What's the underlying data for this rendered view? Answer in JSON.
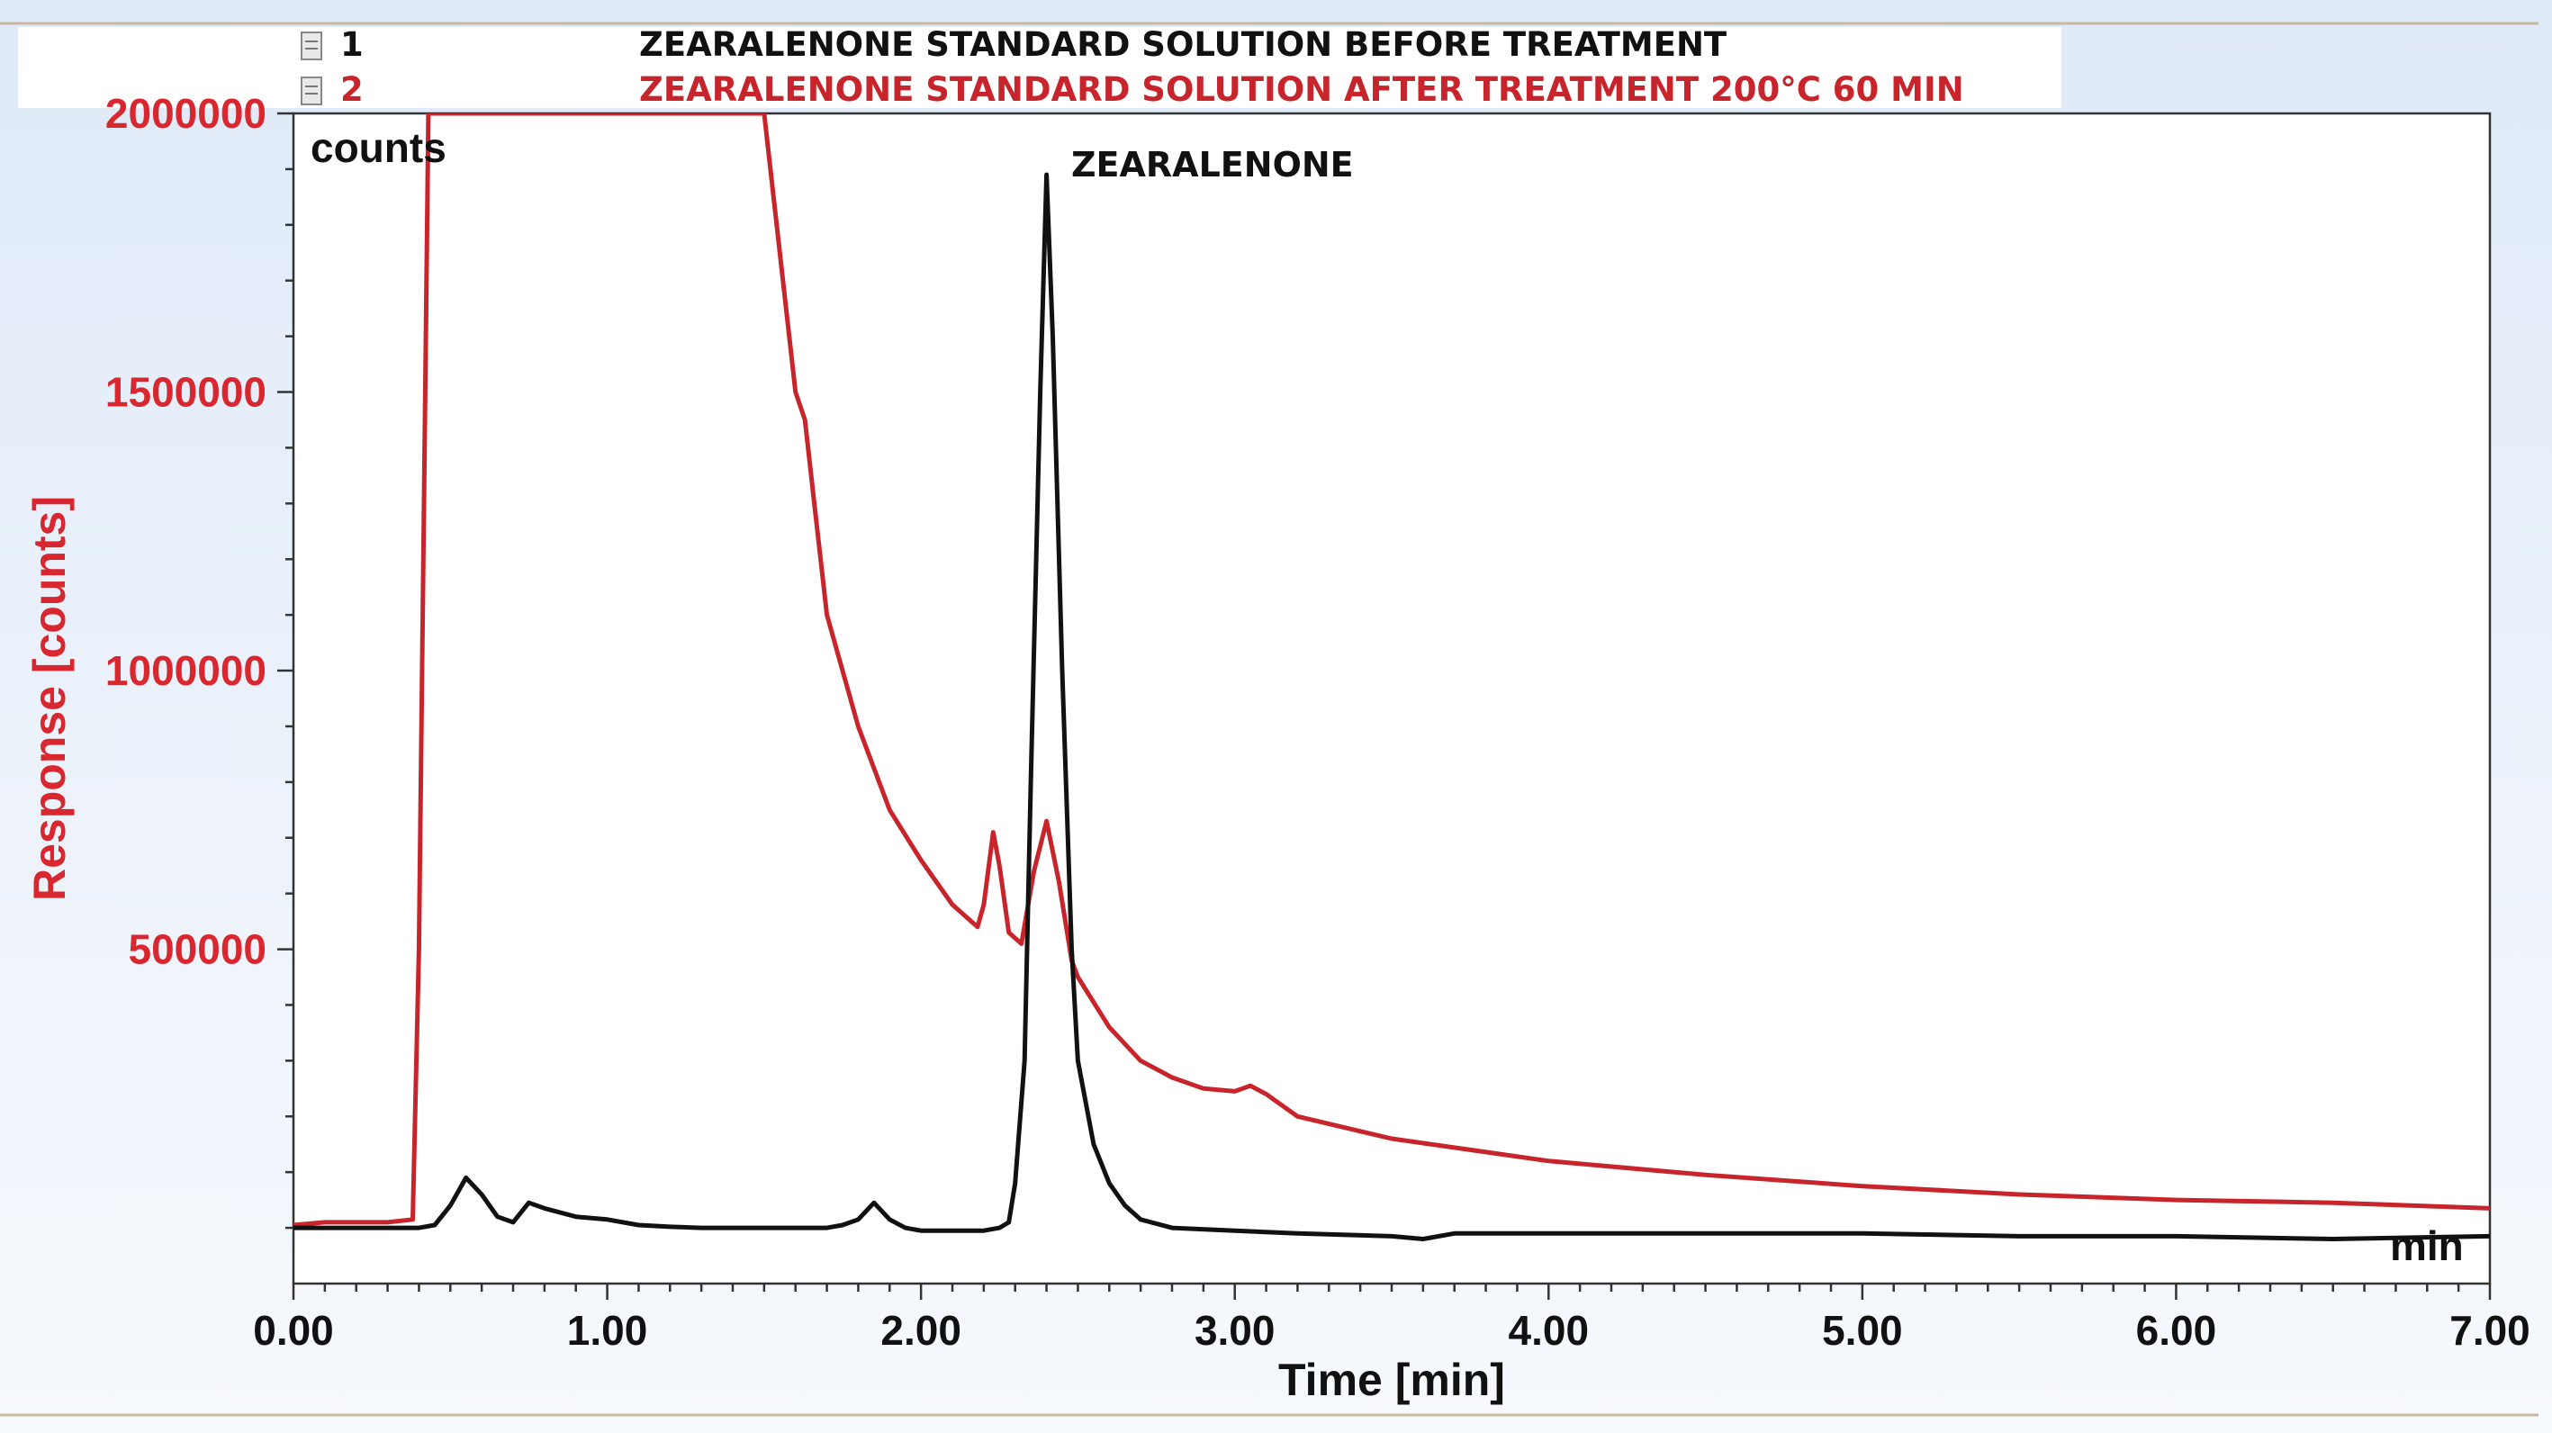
{
  "chart_data": {
    "type": "line",
    "title": "",
    "xlabel": "Time [min]",
    "ylabel": "Response [counts]",
    "y_unit_label": "counts",
    "x_unit_label": "min",
    "xlim": [
      0,
      7
    ],
    "ylim": [
      -100000,
      2000000
    ],
    "x_ticks": [
      0,
      1,
      2,
      3,
      4,
      5,
      6,
      7
    ],
    "x_tick_labels": [
      "0.00",
      "1.00",
      "2.00",
      "3.00",
      "4.00",
      "5.00",
      "6.00",
      "7.00"
    ],
    "y_ticks": [
      500000,
      1000000,
      1500000,
      2000000
    ],
    "y_tick_labels": [
      "500000",
      "1000000",
      "1500000",
      "2000000"
    ],
    "grid": false,
    "legend_position": "top",
    "annotations": [
      {
        "text": "ZEARALENONE",
        "x": 2.4,
        "y": 1900000
      }
    ],
    "series": [
      {
        "id": "1",
        "name": "ZEARALENONE STANDARD SOLUTION BEFORE TREATMENT",
        "color": "#111111",
        "x": [
          0.0,
          0.1,
          0.2,
          0.3,
          0.4,
          0.45,
          0.5,
          0.55,
          0.6,
          0.65,
          0.7,
          0.75,
          0.8,
          0.9,
          1.0,
          1.1,
          1.2,
          1.3,
          1.4,
          1.5,
          1.6,
          1.7,
          1.75,
          1.8,
          1.85,
          1.9,
          1.95,
          2.0,
          2.1,
          2.2,
          2.25,
          2.28,
          2.3,
          2.33,
          2.35,
          2.38,
          2.4,
          2.42,
          2.45,
          2.48,
          2.5,
          2.55,
          2.6,
          2.65,
          2.7,
          2.8,
          3.0,
          3.2,
          3.5,
          3.6,
          3.7,
          4.0,
          4.5,
          5.0,
          5.5,
          6.0,
          6.5,
          7.0
        ],
        "y": [
          0,
          0,
          0,
          0,
          0,
          5000,
          40000,
          90000,
          60000,
          20000,
          10000,
          45000,
          35000,
          20000,
          15000,
          5000,
          2000,
          0,
          0,
          0,
          0,
          0,
          5000,
          15000,
          45000,
          15000,
          0,
          -5000,
          -5000,
          -5000,
          0,
          10000,
          80000,
          300000,
          800000,
          1500000,
          1890000,
          1600000,
          1000000,
          500000,
          300000,
          150000,
          80000,
          40000,
          15000,
          0,
          -5000,
          -10000,
          -15000,
          -20000,
          -10000,
          -10000,
          -10000,
          -10000,
          -15000,
          -15000,
          -20000,
          -15000
        ]
      },
      {
        "id": "2",
        "name": "ZEARALENONE STANDARD SOLUTION AFTER TREATMENT 200°C 60 MIN",
        "color": "#c8242b",
        "x": [
          0.0,
          0.1,
          0.2,
          0.3,
          0.38,
          0.4,
          0.42,
          0.43,
          1.5,
          1.55,
          1.6,
          1.63,
          1.66,
          1.7,
          1.8,
          1.9,
          2.0,
          2.1,
          2.18,
          2.2,
          2.23,
          2.25,
          2.28,
          2.32,
          2.36,
          2.4,
          2.44,
          2.48,
          2.5,
          2.6,
          2.7,
          2.8,
          2.9,
          3.0,
          3.05,
          3.1,
          3.2,
          3.5,
          4.0,
          4.5,
          5.0,
          5.5,
          6.0,
          6.5,
          7.0
        ],
        "y": [
          5000,
          10000,
          10000,
          10000,
          15000,
          500000,
          1500000,
          2000000,
          2000000,
          1750000,
          1500000,
          1450000,
          1300000,
          1100000,
          900000,
          750000,
          660000,
          580000,
          540000,
          580000,
          710000,
          650000,
          530000,
          510000,
          640000,
          730000,
          620000,
          480000,
          450000,
          360000,
          300000,
          270000,
          250000,
          245000,
          255000,
          240000,
          200000,
          160000,
          120000,
          95000,
          75000,
          60000,
          50000,
          45000,
          35000
        ]
      }
    ]
  },
  "colors": {
    "frame": "#333333",
    "red_axis": "#d8272f",
    "black": "#111111",
    "legend_bg": "#ffffff"
  }
}
